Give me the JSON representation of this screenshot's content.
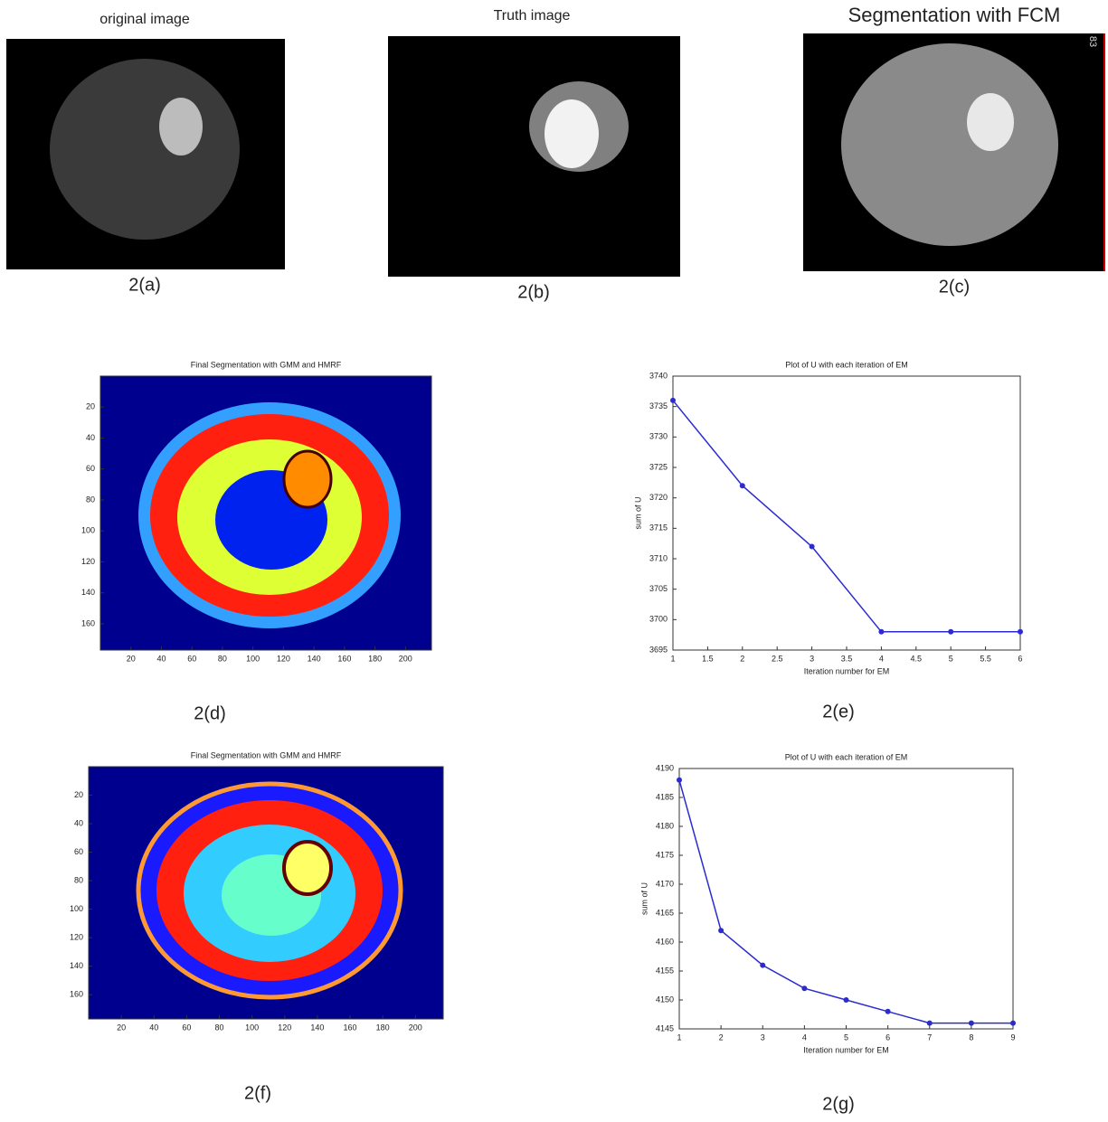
{
  "panels": [
    {
      "title": "original image",
      "caption": "2(a)"
    },
    {
      "title": "Truth image",
      "caption": "2(b)"
    },
    {
      "title": "Segmentation with FCM",
      "caption": "2(c)",
      "side_label": "83"
    }
  ],
  "seg_panels": [
    {
      "title": "Final Segmentation with GMM and HMRF",
      "caption": "2(d)",
      "xlim": [
        0,
        217
      ],
      "ylim": [
        0,
        177
      ],
      "xticks": [
        20,
        40,
        60,
        80,
        100,
        120,
        140,
        160,
        180,
        200
      ],
      "yticks": [
        20,
        40,
        60,
        80,
        100,
        120,
        140,
        160
      ]
    },
    {
      "title": "Final Segmentation with GMM and HMRF",
      "caption": "2(f)",
      "xlim": [
        0,
        217
      ],
      "ylim": [
        0,
        177
      ],
      "xticks": [
        20,
        40,
        60,
        80,
        100,
        120,
        140,
        160,
        180,
        200
      ],
      "yticks": [
        20,
        40,
        60,
        80,
        100,
        120,
        140,
        160
      ]
    }
  ],
  "chart_data": [
    {
      "type": "line",
      "title": "Plot of U with each iteration of  EM",
      "caption": "2(e)",
      "x_label": "Iteration number for EM",
      "y_label": "sum of U",
      "x": [
        1,
        2,
        3,
        4,
        5,
        6
      ],
      "values": [
        3736,
        3722,
        3712,
        3698,
        3698,
        3698
      ],
      "color": "#2b2bd0",
      "xlim": [
        1,
        6
      ],
      "ylim": [
        3695,
        3740
      ],
      "xticks": [
        1,
        1.5,
        2,
        2.5,
        3,
        3.5,
        4,
        4.5,
        5,
        5.5,
        6
      ],
      "yticks": [
        3695,
        3700,
        3705,
        3710,
        3715,
        3720,
        3725,
        3730,
        3735,
        3740
      ]
    },
    {
      "type": "line",
      "title": "Plot of U with each iteration of  EM",
      "caption": "2(g)",
      "x_label": "Iteration number for EM",
      "y_label": "sum of U",
      "x": [
        1,
        2,
        3,
        4,
        5,
        6,
        7,
        8,
        9
      ],
      "values": [
        4188,
        4162,
        4156,
        4152,
        4150,
        4148,
        4146,
        4146,
        4146
      ],
      "color": "#2b2bd0",
      "xlim": [
        1,
        9
      ],
      "ylim": [
        4145,
        4190
      ],
      "xticks": [
        1,
        2,
        3,
        4,
        5,
        6,
        7,
        8,
        9
      ],
      "yticks": [
        4145,
        4150,
        4155,
        4160,
        4165,
        4170,
        4175,
        4180,
        4185,
        4190
      ]
    }
  ]
}
